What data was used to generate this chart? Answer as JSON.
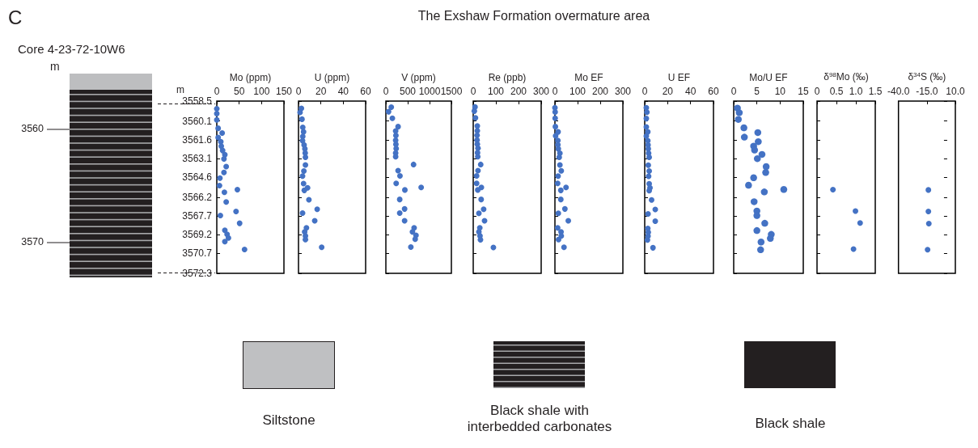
{
  "chart_data": [
    {
      "type": "other",
      "title": "The Exshaw Formation overmature area",
      "annotations": [
        "C",
        "Core 4-23-72-10W6",
        "m",
        "3560",
        "3570",
        "Siltstone",
        "Black shale with interbedded carbonates",
        "Black shale"
      ]
    },
    {
      "type": "scatter",
      "xlabel": "Mo (ppm)",
      "ylabel": "m",
      "color": "#4472c4",
      "marker": "circle",
      "xlim": [
        0,
        150
      ],
      "xticks": [
        0,
        50,
        100,
        150
      ],
      "ylim": [
        3572.3,
        3558.5
      ],
      "yticks": [
        3558.5,
        3560.1,
        3561.6,
        3563.1,
        3564.6,
        3566.2,
        3567.7,
        3569.2,
        3570.7,
        3572.3
      ],
      "x": [
        0,
        0,
        0,
        3,
        12,
        3,
        9,
        10,
        13,
        18,
        16,
        21,
        16,
        7,
        6,
        46,
        17,
        21,
        43,
        8,
        51,
        18,
        23,
        26,
        18,
        62
      ],
      "values": [
        3559.12,
        3559.5,
        3560.01,
        3560.68,
        3561.06,
        3561.42,
        3561.75,
        3562.11,
        3562.46,
        3562.8,
        3563.13,
        3563.75,
        3564.22,
        3564.67,
        3565.27,
        3565.6,
        3565.8,
        3566.58,
        3567.34,
        3567.67,
        3568.29,
        3568.85,
        3569.18,
        3569.47,
        3569.76,
        3570.39
      ]
    },
    {
      "type": "scatter",
      "xlabel": "U (ppm)",
      "color": "#4472c4",
      "marker": "circle",
      "tick_labels": "x",
      "xlim": [
        0,
        60
      ],
      "xticks": [
        0,
        20,
        40,
        60
      ],
      "ylim": [
        3572.3,
        3558.5
      ],
      "yticks": [
        3558.5,
        3560.1,
        3561.6,
        3563.1,
        3564.6,
        3566.2,
        3567.7,
        3569.2,
        3570.7,
        3572.3
      ],
      "x": [
        2.6,
        1.4,
        3.1,
        3.8,
        4.5,
        3.8,
        3.6,
        5.0,
        5.7,
        6.0,
        6.2,
        6.2,
        4.8,
        3.6,
        4.5,
        8.1,
        5.2,
        9.3,
        16.7,
        3.6,
        14.5,
        7.1,
        5.5,
        6.2,
        6.2,
        20.7
      ],
      "values": [
        3559.08,
        3559.41,
        3559.95,
        3560.61,
        3560.97,
        3561.33,
        3561.68,
        3562.02,
        3562.33,
        3562.66,
        3563.0,
        3563.62,
        3564.11,
        3564.51,
        3565.11,
        3565.45,
        3565.65,
        3566.4,
        3567.16,
        3567.47,
        3568.09,
        3568.65,
        3568.98,
        3569.3,
        3569.59,
        3570.21
      ]
    },
    {
      "type": "scatter",
      "xlabel": "V (ppm)",
      "color": "#4472c4",
      "marker": "circle",
      "tick_labels": "x",
      "xlim": [
        0,
        1500
      ],
      "xticks": [
        0,
        500,
        1000,
        1500
      ],
      "ylim": [
        3572.3,
        3558.5
      ],
      "yticks": [
        3558.5,
        3560.1,
        3561.6,
        3563.1,
        3564.6,
        3566.2,
        3567.7,
        3569.2,
        3570.7,
        3572.3
      ],
      "x": [
        124,
        62,
        149,
        280,
        224,
        230,
        224,
        230,
        236,
        224,
        224,
        634,
        280,
        323,
        236,
        808,
        435,
        317,
        429,
        317,
        429,
        647,
        609,
        690,
        671,
        572
      ],
      "values": [
        3558.99,
        3559.35,
        3559.88,
        3560.55,
        3560.9,
        3561.26,
        3561.64,
        3561.97,
        3562.31,
        3562.66,
        3562.95,
        3563.58,
        3564.07,
        3564.49,
        3565.09,
        3565.42,
        3565.62,
        3566.38,
        3567.14,
        3567.47,
        3568.09,
        3568.65,
        3568.98,
        3569.25,
        3569.56,
        3570.19
      ]
    },
    {
      "type": "scatter",
      "xlabel": "Re (ppb)",
      "color": "#4472c4",
      "marker": "circle",
      "tick_labels": "x",
      "xlim": [
        0,
        300
      ],
      "xticks": [
        0,
        100,
        200,
        300
      ],
      "ylim": [
        3572.3,
        3558.5
      ],
      "yticks": [
        3558.5,
        3560.1,
        3561.6,
        3563.1,
        3564.6,
        3566.2,
        3567.7,
        3569.2,
        3570.7,
        3572.3
      ],
      "x": [
        8,
        5,
        10,
        18,
        18,
        17,
        17,
        18,
        21,
        19,
        20,
        33,
        21,
        15,
        15,
        36,
        20,
        35,
        46,
        25,
        50,
        29,
        25,
        30,
        32,
        89
      ],
      "values": [
        3558.97,
        3559.3,
        3559.84,
        3560.5,
        3560.88,
        3561.24,
        3561.62,
        3561.95,
        3562.28,
        3562.64,
        3562.95,
        3563.58,
        3564.07,
        3564.49,
        3565.09,
        3565.42,
        3565.62,
        3566.38,
        3567.16,
        3567.49,
        3568.09,
        3568.65,
        3568.98,
        3569.3,
        3569.61,
        3570.23
      ]
    },
    {
      "type": "scatter",
      "xlabel": "Mo EF",
      "color": "#4472c4",
      "marker": "circle",
      "tick_labels": "x",
      "xlim": [
        0,
        300
      ],
      "xticks": [
        0,
        100,
        200,
        300
      ],
      "ylim": [
        3572.3,
        3558.5
      ],
      "yticks": [
        3558.5,
        3560.1,
        3561.6,
        3563.1,
        3564.6,
        3566.2,
        3567.7,
        3569.2,
        3570.7,
        3572.3
      ],
      "x": [
        0,
        1,
        1,
        2,
        14,
        3,
        13,
        13,
        15,
        22,
        19,
        22,
        28,
        14,
        12,
        49,
        26,
        26,
        44,
        15,
        59,
        12,
        27,
        28,
        16,
        40
      ],
      "values": [
        3559.03,
        3559.37,
        3559.88,
        3560.55,
        3560.97,
        3561.28,
        3561.66,
        3562.0,
        3562.33,
        3562.68,
        3563.0,
        3563.62,
        3564.09,
        3564.51,
        3565.09,
        3565.42,
        3565.65,
        3566.38,
        3567.14,
        3567.49,
        3568.09,
        3568.65,
        3568.98,
        3569.3,
        3569.59,
        3570.21
      ]
    },
    {
      "type": "scatter",
      "xlabel": "U EF",
      "color": "#4472c4",
      "marker": "circle",
      "tick_labels": "x",
      "xlim": [
        0,
        60
      ],
      "xticks": [
        0,
        20,
        40,
        60
      ],
      "ylim": [
        3572.3,
        3558.5
      ],
      "yticks": [
        3558.5,
        3560.1,
        3561.6,
        3563.1,
        3564.6,
        3566.2,
        3567.7,
        3569.2,
        3570.7,
        3572.3
      ],
      "x": [
        1.4,
        1.9,
        1.4,
        1.4,
        2.7,
        1.4,
        2.7,
        2.9,
        3.1,
        3.4,
        3.9,
        3.1,
        3.9,
        3.4,
        3.9,
        4.6,
        3.9,
        6.0,
        9.2,
        2.9,
        9.2,
        2.7,
        3.1,
        2.9,
        2.4,
        7.2
      ],
      "values": [
        3559.03,
        3559.39,
        3559.9,
        3560.57,
        3560.97,
        3561.3,
        3561.68,
        3562.02,
        3562.33,
        3562.68,
        3563.0,
        3563.64,
        3564.11,
        3564.53,
        3565.13,
        3565.45,
        3565.67,
        3566.42,
        3567.18,
        3567.54,
        3568.12,
        3568.7,
        3569.01,
        3569.32,
        3569.63,
        3570.25
      ]
    },
    {
      "type": "scatter",
      "xlabel": "Mo/U EF",
      "color": "#4472c4",
      "marker": "circle",
      "tick_labels": "x",
      "xlim": [
        0,
        15
      ],
      "xticks": [
        0,
        5,
        10,
        15
      ],
      "ylim": [
        3572.3,
        3558.5
      ],
      "yticks": [
        3558.5,
        3560.1,
        3561.6,
        3563.1,
        3564.6,
        3566.2,
        3567.7,
        3569.2,
        3570.7,
        3572.3
      ],
      "x": [
        0.8,
        1.2,
        1.0,
        2.2,
        5.2,
        2.3,
        5.3,
        4.3,
        4.5,
        6.1,
        5.1,
        7.0,
        6.9,
        4.3,
        3.2,
        10.8,
        6.6,
        4.4,
        5.0,
        5.0,
        6.7,
        5.0,
        8.1,
        7.9,
        5.9,
        5.8
      ],
      "values": [
        3559.06,
        3559.43,
        3559.97,
        3560.64,
        3561.02,
        3561.39,
        3561.75,
        3562.11,
        3562.42,
        3562.77,
        3563.11,
        3563.75,
        3564.22,
        3564.64,
        3565.24,
        3565.58,
        3565.78,
        3566.56,
        3567.31,
        3567.67,
        3568.29,
        3568.87,
        3569.18,
        3569.5,
        3569.79,
        3570.41
      ]
    },
    {
      "type": "scatter",
      "xlabel": "δ$^{98}$Mo (‰)",
      "color": "#4472c4",
      "marker": "circle",
      "tick_labels": "x",
      "xlim": [
        0,
        1.5
      ],
      "xticks": [
        0,
        0.5,
        {
          "value": 1,
          "label": "1.0"
        },
        1.5
      ],
      "ylim": [
        3572.3,
        3558.5
      ],
      "yticks": [
        3558.5,
        3560.1,
        3561.6,
        3563.1,
        3564.6,
        3566.2,
        3567.7,
        3569.2,
        3570.7,
        3572.3
      ],
      "x": [
        0.41,
        0.99,
        1.11,
        0.94
      ],
      "values": [
        3565.6,
        3567.31,
        3568.27,
        3570.36
      ]
    },
    {
      "type": "scatter",
      "xlabel": "δ$^{34}$S (‰)",
      "color": "#4472c4",
      "marker": "circle",
      "tick_labels": "x",
      "xlim": [
        -40,
        10
      ],
      "xticks": [
        {
          "value": -40,
          "label": "-40.0"
        },
        {
          "value": -15,
          "label": "-15.0"
        },
        {
          "value": 10,
          "label": "10.0"
        }
      ],
      "ylim": [
        3572.3,
        3558.5
      ],
      "yticks": [
        3558.5,
        3560.1,
        3561.6,
        3563.1,
        3564.6,
        3566.2,
        3567.7,
        3569.2,
        3570.7,
        3572.3
      ],
      "x": [
        -13.7,
        -13.7,
        -13.3,
        -14.4
      ],
      "values": [
        3565.62,
        3567.34,
        3568.32,
        3570.41
      ]
    }
  ]
}
